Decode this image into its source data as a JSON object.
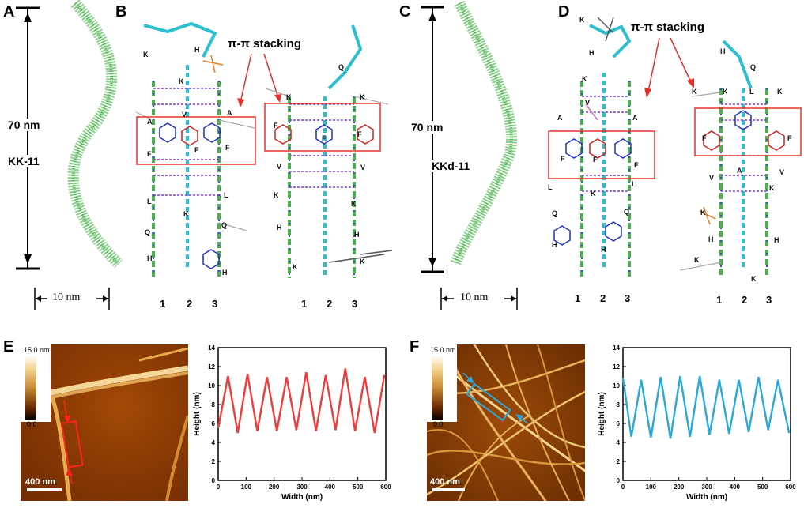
{
  "panels": {
    "A": {
      "letter": "A",
      "length_label": "70 nm",
      "name_label": "KK-11",
      "width_label": "10 nm"
    },
    "B": {
      "letter": "B",
      "annotation": "π-π stacking",
      "columns": [
        "1",
        "2",
        "3"
      ],
      "left_residues": [
        "K",
        "H",
        "K",
        "A",
        "V",
        "A",
        "F",
        "F",
        "F",
        "L",
        "L",
        "K",
        "Q",
        "Q",
        "H",
        "H"
      ],
      "right_residues": [
        "Q",
        "K",
        "K",
        "F",
        "F",
        "F",
        "V",
        "V",
        "K",
        "K",
        "H",
        "H",
        "K",
        "K"
      ]
    },
    "C": {
      "letter": "C",
      "length_label": "70 nm",
      "name_label": "KKd-11",
      "width_label": "10 nm"
    },
    "D": {
      "letter": "D",
      "annotation": "π-π stacking",
      "columns": [
        "1",
        "2",
        "3"
      ],
      "left_residues": [
        "K",
        "H",
        "K",
        "V",
        "A",
        "A",
        "F",
        "F",
        "F",
        "L",
        "L",
        "K",
        "Q",
        "Q",
        "H",
        "H"
      ],
      "right_residues": [
        "H",
        "Q",
        "K",
        "K",
        "L",
        "K",
        "F",
        "F",
        "A",
        "V",
        "V",
        "K",
        "K",
        "H",
        "H",
        "K",
        "K"
      ]
    },
    "E": {
      "letter": "E",
      "colorbar_max": "15.0 nm",
      "colorbar_min": "0.0",
      "scale": "400 nm"
    },
    "F": {
      "letter": "F",
      "colorbar_max": "15.0 nm",
      "colorbar_min": "0.0",
      "scale": "400 nm"
    }
  },
  "colors": {
    "kk11_line": "#ee3b3b",
    "kkd11_line": "#2aa9d9",
    "box": "#e8302a",
    "fibril": "#4caf50"
  },
  "chart_data": [
    {
      "type": "line",
      "panel": "E",
      "xlabel": "Width (nm)",
      "ylabel": "Height (nm)",
      "xlim": [
        0,
        600
      ],
      "ylim": [
        0,
        14
      ],
      "xticks": [
        0,
        100,
        200,
        300,
        400,
        500,
        600
      ],
      "yticks": [
        0,
        2,
        4,
        6,
        8,
        10,
        12,
        14
      ],
      "grid": false,
      "series": [
        {
          "color": "#ee3b3b",
          "x": [
            0,
            35,
            70,
            105,
            140,
            175,
            210,
            245,
            280,
            315,
            350,
            385,
            420,
            455,
            490,
            525,
            560,
            595
          ],
          "y": [
            5.5,
            11.0,
            5.0,
            11.2,
            5.2,
            10.9,
            5.2,
            10.9,
            5.3,
            11.4,
            5.2,
            11.1,
            5.3,
            11.8,
            5.2,
            10.9,
            5.0,
            11.1
          ]
        }
      ]
    },
    {
      "type": "line",
      "panel": "F",
      "xlabel": "Width (nm)",
      "ylabel": "Height (nm)",
      "xlim": [
        0,
        600
      ],
      "ylim": [
        0,
        14
      ],
      "xticks": [
        0,
        100,
        200,
        300,
        400,
        500,
        600
      ],
      "yticks": [
        0,
        2,
        4,
        6,
        8,
        10,
        12,
        14
      ],
      "grid": false,
      "series": [
        {
          "color": "#2aa9d9",
          "x": [
            0,
            30,
            65,
            100,
            135,
            170,
            205,
            240,
            275,
            310,
            345,
            380,
            415,
            450,
            485,
            520,
            555,
            595
          ],
          "y": [
            10.8,
            4.6,
            10.6,
            4.5,
            10.9,
            4.4,
            11.0,
            4.6,
            11.0,
            4.8,
            10.6,
            4.9,
            10.6,
            5.1,
            10.9,
            5.3,
            10.6,
            5.0
          ]
        }
      ]
    }
  ]
}
